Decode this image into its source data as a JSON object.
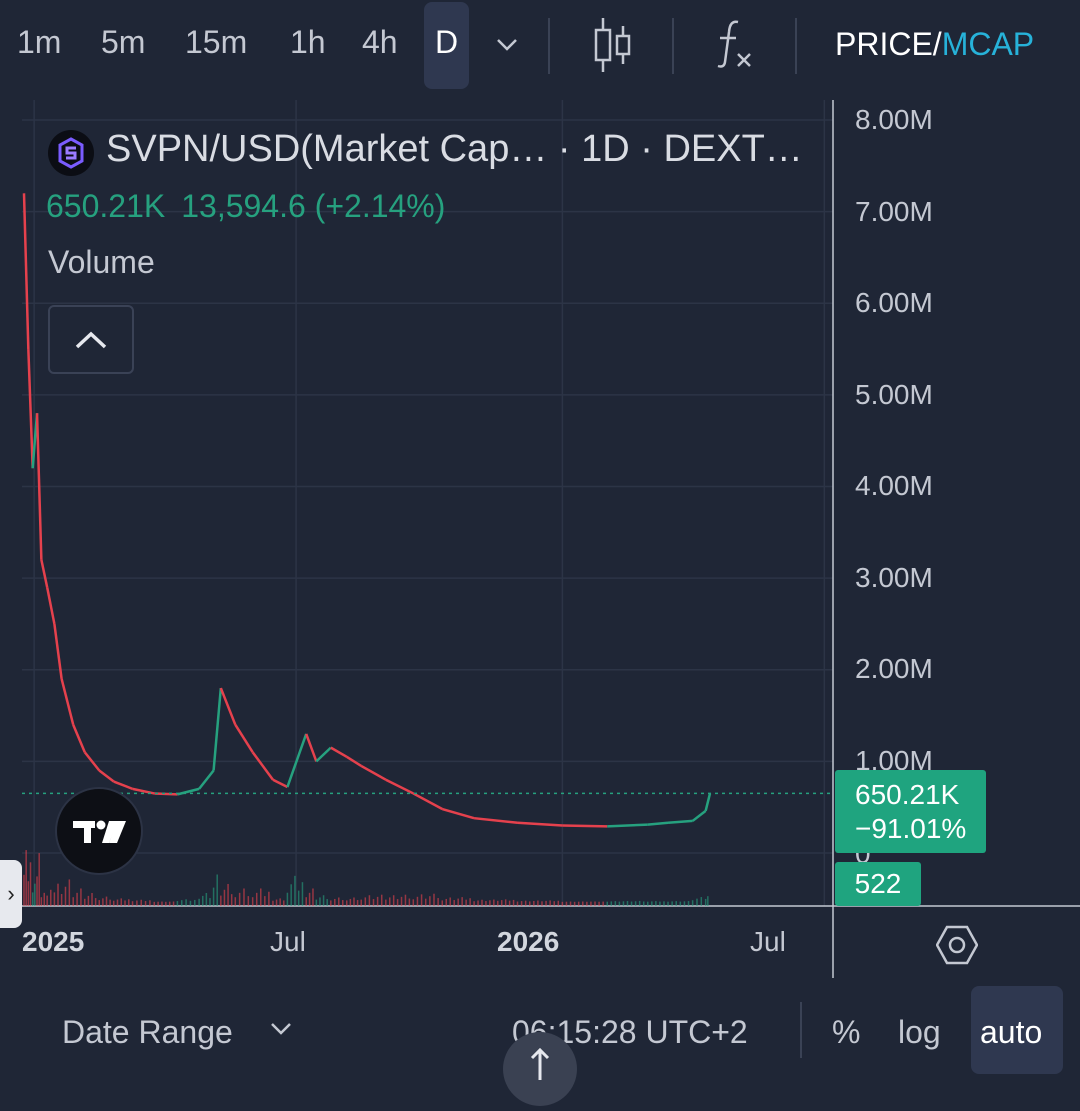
{
  "toolbar": {
    "timeframes": [
      "1m",
      "5m",
      "15m",
      "1h",
      "4h",
      "D"
    ],
    "active_timeframe": "D",
    "price_label": "PRICE/",
    "mcap_label": "MCAP",
    "colors": {
      "active_bg": "#2f3850",
      "mcap": "#27b2d9"
    }
  },
  "legend": {
    "title": "SVPN/USD(Market Cap… · 1D · DEXT…",
    "open": "650.21K",
    "change": "13,594.6 (+2.14%)",
    "indicator": "Volume"
  },
  "chart_data": {
    "type": "line",
    "x_tick_labels": [
      "2025",
      "Jul",
      "2026",
      "Jul"
    ],
    "y_tick_labels": [
      "8.00M",
      "7.00M",
      "6.00M",
      "5.00M",
      "4.00M",
      "3.00M",
      "2.00M",
      "1.00M",
      "0"
    ],
    "ylim": [
      0,
      8000000
    ],
    "grid": true,
    "x": [
      "2024-12-25",
      "2024-12-28",
      "2024-12-31",
      "2025-01-03",
      "2025-01-06",
      "2025-01-10",
      "2025-01-15",
      "2025-01-20",
      "2025-01-28",
      "2025-02-05",
      "2025-02-15",
      "2025-02-25",
      "2025-03-10",
      "2025-03-25",
      "2025-04-10",
      "2025-04-25",
      "2025-05-05",
      "2025-05-10",
      "2025-05-20",
      "2025-06-01",
      "2025-06-15",
      "2025-06-25",
      "2025-07-08",
      "2025-07-15",
      "2025-07-25",
      "2025-08-05",
      "2025-08-15",
      "2025-09-01",
      "2025-09-20",
      "2025-10-10",
      "2025-11-01",
      "2025-12-01",
      "2026-01-01",
      "2026-02-01",
      "2026-03-01",
      "2026-03-15",
      "2026-04-01",
      "2026-04-10",
      "2026-04-13"
    ],
    "values": [
      7200000,
      5500000,
      4200000,
      4800000,
      3200000,
      2900000,
      2500000,
      1900000,
      1400000,
      1100000,
      900000,
      780000,
      700000,
      650000,
      640000,
      700000,
      900000,
      1800000,
      1400000,
      1100000,
      800000,
      720000,
      1300000,
      1000000,
      1150000,
      1050000,
      950000,
      800000,
      650000,
      480000,
      380000,
      330000,
      300000,
      290000,
      310000,
      330000,
      350000,
      460000,
      650210
    ],
    "last_value": "650.21K",
    "last_change": "−91.01%",
    "volume_last": "522",
    "colors": {
      "up": "#26a17f",
      "down": "#e5414d",
      "label_bg": "#1fa47f"
    }
  },
  "bottom": {
    "date_range": "Date Range",
    "time": "06:15:28 UTC+2",
    "percent": "%",
    "log": "log",
    "auto": "auto"
  }
}
